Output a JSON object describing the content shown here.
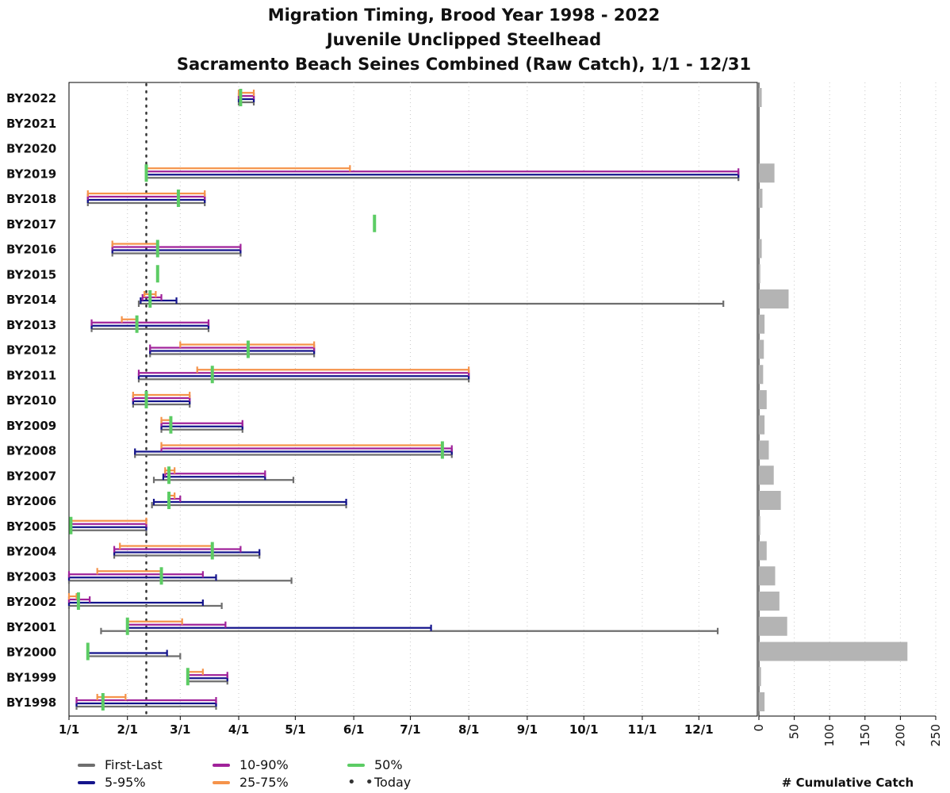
{
  "chart_data": {
    "type": "bar",
    "title": [
      "Migration Timing, Brood Year 1998 - 2022",
      "Juvenile Unclipped Steelhead",
      "Sacramento Beach Seines Combined (Raw Catch), 1/1 - 12/31"
    ],
    "categories": [
      "BY2022",
      "BY2021",
      "BY2020",
      "BY2019",
      "BY2018",
      "BY2017",
      "BY2016",
      "BY2015",
      "BY2014",
      "BY2013",
      "BY2012",
      "BY2011",
      "BY2010",
      "BY2009",
      "BY2008",
      "BY2007",
      "BY2006",
      "BY2005",
      "BY2004",
      "BY2003",
      "BY2002",
      "BY2001",
      "BY2000",
      "BY1999",
      "BY1998"
    ],
    "x_ticks": [
      "1/1",
      "2/1",
      "3/1",
      "4/1",
      "5/1",
      "6/1",
      "7/1",
      "8/1",
      "9/1",
      "10/1",
      "11/1",
      "12/1"
    ],
    "x_unit": "day of year",
    "x_range": [
      1,
      366
    ],
    "today_day": 42,
    "timing": [
      {
        "by": "BY2022",
        "first_last": [
          91,
          99
        ],
        "p5_95": [
          91,
          99
        ],
        "p10_90": [
          91,
          99
        ],
        "p25_75": [
          91,
          99
        ],
        "p50": 92
      },
      {
        "by": "BY2021"
      },
      {
        "by": "BY2020"
      },
      {
        "by": "BY2019",
        "first_last": [
          42,
          356
        ],
        "p5_95": [
          42,
          356
        ],
        "p10_90": [
          42,
          356
        ],
        "p25_75": [
          42,
          150
        ],
        "p50": 42
      },
      {
        "by": "BY2018",
        "first_last": [
          11,
          73
        ],
        "p5_95": [
          11,
          73
        ],
        "p10_90": [
          11,
          73
        ],
        "p25_75": [
          11,
          73
        ],
        "p50": 59
      },
      {
        "by": "BY2017",
        "p50": 163
      },
      {
        "by": "BY2016",
        "first_last": [
          24,
          92
        ],
        "p5_95": [
          24,
          92
        ],
        "p10_90": [
          24,
          92
        ],
        "p25_75": [
          24,
          48
        ],
        "p50": 48
      },
      {
        "by": "BY2015",
        "p50": 48
      },
      {
        "by": "BY2014",
        "first_last": [
          38,
          348
        ],
        "p5_95": [
          39,
          58
        ],
        "p10_90": [
          40,
          50
        ],
        "p25_75": [
          41,
          47
        ],
        "p50": 44
      },
      {
        "by": "BY2013",
        "first_last": [
          13,
          75
        ],
        "p5_95": [
          13,
          75
        ],
        "p10_90": [
          13,
          75
        ],
        "p25_75": [
          29,
          37
        ],
        "p50": 37
      },
      {
        "by": "BY2012",
        "first_last": [
          44,
          131
        ],
        "p5_95": [
          44,
          131
        ],
        "p10_90": [
          44,
          131
        ],
        "p25_75": [
          60,
          131
        ],
        "p50": 96
      },
      {
        "by": "BY2011",
        "first_last": [
          38,
          213
        ],
        "p5_95": [
          38,
          213
        ],
        "p10_90": [
          38,
          213
        ],
        "p25_75": [
          69,
          213
        ],
        "p50": 77
      },
      {
        "by": "BY2010",
        "first_last": [
          35,
          65
        ],
        "p5_95": [
          35,
          65
        ],
        "p10_90": [
          35,
          65
        ],
        "p25_75": [
          35,
          65
        ],
        "p50": 42
      },
      {
        "by": "BY2009",
        "first_last": [
          50,
          93
        ],
        "p5_95": [
          50,
          93
        ],
        "p10_90": [
          50,
          93
        ],
        "p25_75": [
          50,
          55
        ],
        "p50": 55
      },
      {
        "by": "BY2008",
        "first_last": [
          36,
          204
        ],
        "p5_95": [
          36,
          204
        ],
        "p10_90": [
          50,
          204
        ],
        "p25_75": [
          50,
          199
        ],
        "p50": 199
      },
      {
        "by": "BY2007",
        "first_last": [
          46,
          120
        ],
        "p5_95": [
          51,
          105
        ],
        "p10_90": [
          52,
          105
        ],
        "p25_75": [
          52,
          57
        ],
        "p50": 54
      },
      {
        "by": "BY2006",
        "first_last": [
          45,
          148
        ],
        "p5_95": [
          46,
          148
        ],
        "p10_90": [
          54,
          60
        ],
        "p25_75": [
          54,
          57
        ],
        "p50": 54
      },
      {
        "by": "BY2005",
        "first_last": [
          2,
          42
        ],
        "p5_95": [
          2,
          42
        ],
        "p10_90": [
          2,
          42
        ],
        "p25_75": [
          2,
          42
        ],
        "p50": 2
      },
      {
        "by": "BY2004",
        "first_last": [
          25,
          102
        ],
        "p5_95": [
          25,
          102
        ],
        "p10_90": [
          25,
          92
        ],
        "p25_75": [
          28,
          77
        ],
        "p50": 77
      },
      {
        "by": "BY2003",
        "first_last": [
          1,
          119
        ],
        "p5_95": [
          1,
          79
        ],
        "p10_90": [
          1,
          72
        ],
        "p25_75": [
          16,
          50
        ],
        "p50": 50
      },
      {
        "by": "BY2002",
        "first_last": [
          1,
          82
        ],
        "p5_95": [
          1,
          72
        ],
        "p10_90": [
          1,
          12
        ],
        "p25_75": [
          1,
          5
        ],
        "p50": 6
      },
      {
        "by": "BY2001",
        "first_last": [
          18,
          345
        ],
        "p5_95": [
          32,
          193
        ],
        "p10_90": [
          32,
          84
        ],
        "p25_75": [
          32,
          61
        ],
        "p50": 32
      },
      {
        "by": "BY2000",
        "first_last": [
          11,
          60
        ],
        "p5_95": [
          11,
          53
        ],
        "p10_90": [
          11,
          11
        ],
        "p25_75": [
          11,
          11
        ],
        "p50": 11
      },
      {
        "by": "BY1999",
        "first_last": [
          64,
          85
        ],
        "p5_95": [
          64,
          85
        ],
        "p10_90": [
          64,
          85
        ],
        "p25_75": [
          64,
          72
        ],
        "p50": 64
      },
      {
        "by": "BY1998",
        "first_last": [
          5,
          79
        ],
        "p5_95": [
          5,
          79
        ],
        "p10_90": [
          5,
          79
        ],
        "p25_75": [
          16,
          31
        ],
        "p50": 19
      }
    ],
    "cumulative_catch": {
      "label": "# Cumulative Catch",
      "ticks": [
        "0",
        "50",
        "100",
        "150",
        "200",
        "250"
      ],
      "range": [
        0,
        250
      ],
      "values": [
        4,
        0,
        0,
        22,
        5,
        0,
        4,
        2,
        42,
        8,
        7,
        6,
        11,
        8,
        14,
        21,
        31,
        2,
        11,
        23,
        29,
        40,
        210,
        3,
        8
      ]
    },
    "legend": [
      {
        "key": "first_last",
        "label": "First-Last",
        "color": "#6e6e6e"
      },
      {
        "key": "p5_95",
        "label": "5-95%",
        "color": "#14148c"
      },
      {
        "key": "p10_90",
        "label": "10-90%",
        "color": "#a0229a"
      },
      {
        "key": "p25_75",
        "label": "25-75%",
        "color": "#f5934a"
      },
      {
        "key": "p50",
        "label": "50%",
        "color": "#5ccc64"
      },
      {
        "key": "today",
        "label": "Today",
        "color": "#333333"
      }
    ]
  }
}
